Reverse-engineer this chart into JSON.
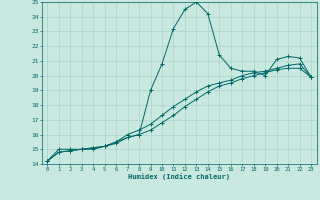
{
  "xlabel": "Humidex (Indice chaleur)",
  "xlim": [
    -0.5,
    23.5
  ],
  "ylim": [
    14,
    25
  ],
  "xticks": [
    0,
    1,
    2,
    3,
    4,
    5,
    6,
    7,
    8,
    9,
    10,
    11,
    12,
    13,
    14,
    15,
    16,
    17,
    18,
    19,
    20,
    21,
    22,
    23
  ],
  "yticks": [
    14,
    15,
    16,
    17,
    18,
    19,
    20,
    21,
    22,
    23,
    24,
    25
  ],
  "bg_color": "#c8e8e0",
  "line_color": "#006868",
  "grid_color": "#a8d4cc",
  "line1_x": [
    0,
    1,
    2,
    3,
    4,
    5,
    6,
    7,
    8,
    9,
    10,
    11,
    12,
    13,
    14,
    15,
    16,
    17,
    18,
    19,
    20,
    21,
    22,
    23
  ],
  "line1_y": [
    14.2,
    15.0,
    15.0,
    15.0,
    15.0,
    15.2,
    15.5,
    15.8,
    16.0,
    19.0,
    20.8,
    23.2,
    24.5,
    25.0,
    24.2,
    21.4,
    20.5,
    20.3,
    20.3,
    20.0,
    21.1,
    21.3,
    21.2,
    19.9
  ],
  "line2_x": [
    0,
    1,
    2,
    3,
    4,
    5,
    6,
    7,
    8,
    9,
    10,
    11,
    12,
    13,
    14,
    15,
    16,
    17,
    18,
    19,
    20,
    21,
    22,
    23
  ],
  "line2_y": [
    14.2,
    14.8,
    14.9,
    15.0,
    15.1,
    15.2,
    15.4,
    15.8,
    16.0,
    16.3,
    16.8,
    17.3,
    17.9,
    18.4,
    18.9,
    19.3,
    19.5,
    19.8,
    20.0,
    20.2,
    20.4,
    20.5,
    20.5,
    19.9
  ],
  "line3_x": [
    0,
    1,
    2,
    3,
    4,
    5,
    6,
    7,
    8,
    9,
    10,
    11,
    12,
    13,
    14,
    15,
    16,
    17,
    18,
    19,
    20,
    21,
    22,
    23
  ],
  "line3_y": [
    14.2,
    14.8,
    14.9,
    15.0,
    15.1,
    15.2,
    15.5,
    16.0,
    16.3,
    16.7,
    17.3,
    17.9,
    18.4,
    18.9,
    19.3,
    19.5,
    19.7,
    20.0,
    20.2,
    20.3,
    20.5,
    20.7,
    20.8,
    19.9
  ]
}
